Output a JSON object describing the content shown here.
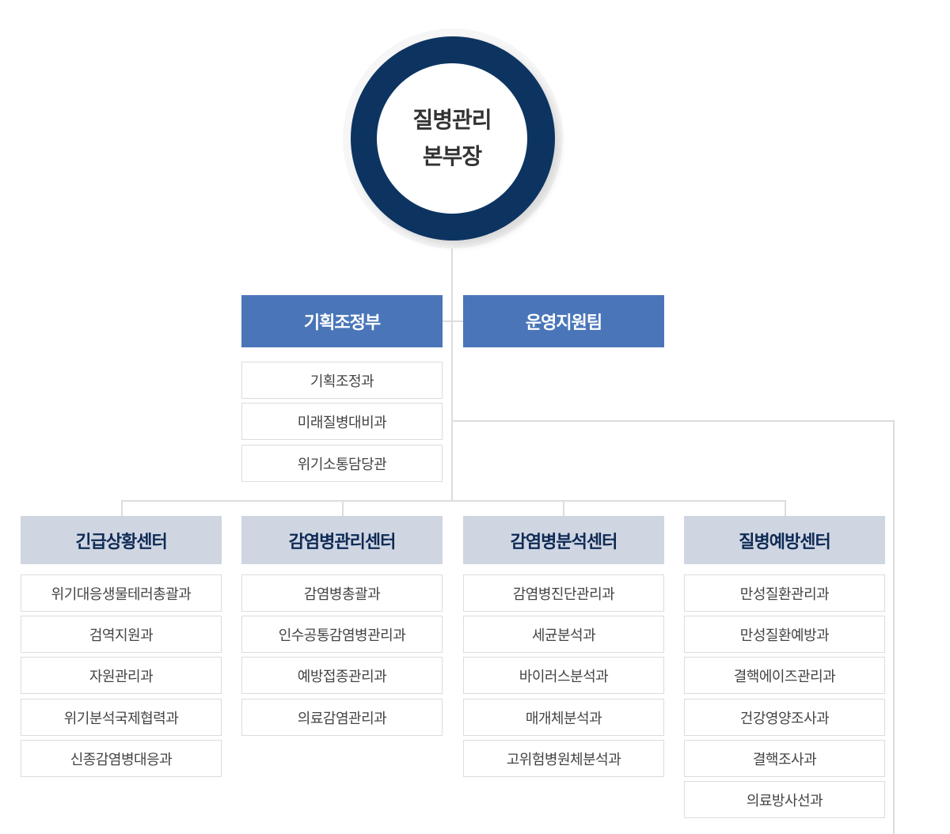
{
  "head": {
    "line1": "질병관리",
    "line2": "본부장"
  },
  "departments": [
    {
      "name": "기획조정부",
      "divisions": [
        "기획조정과",
        "미래질병대비과",
        "위기소통담당관"
      ]
    },
    {
      "name": "운영지원팀",
      "divisions": []
    }
  ],
  "centers": [
    {
      "name": "긴급상황센터",
      "divisions": [
        "위기대응생물테러총괄과",
        "검역지원과",
        "자원관리과",
        "위기분석국제협력과",
        "신종감염병대응과"
      ]
    },
    {
      "name": "감염병관리센터",
      "divisions": [
        "감염병총괄과",
        "인수공통감염병관리과",
        "예방접종관리과",
        "의료감염관리과"
      ]
    },
    {
      "name": "감염병분석센터",
      "divisions": [
        "감염병진단관리과",
        "세균분석과",
        "바이러스분석과",
        "매개체분석과",
        "고위험병원체분석과"
      ]
    },
    {
      "name": "질병예방센터",
      "divisions": [
        "만성질환관리과",
        "만성질환예방과",
        "결핵에이즈관리과",
        "건강영양조사과",
        "결핵조사과",
        "의료방사선과"
      ]
    }
  ],
  "colors": {
    "head_ring": "#0d3461",
    "department_bg": "#4a76b9",
    "center_bg": "#cfd6e2",
    "center_text": "#0f2a55",
    "connector": "#dddddd"
  }
}
